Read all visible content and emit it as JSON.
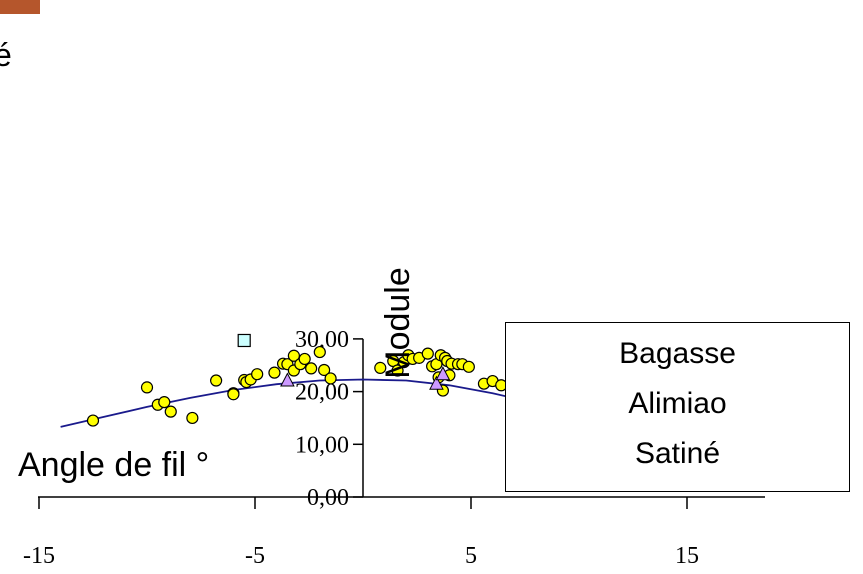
{
  "chart_data": {
    "type": "scatter",
    "xlabel": "Angle de fil °",
    "ylabel": "Module",
    "partial_text": "é",
    "xlim": [
      -15,
      20
    ],
    "ylim": [
      0,
      30
    ],
    "x_ticks": [
      -15,
      -5,
      5,
      15
    ],
    "x_tick_labels": [
      "-15",
      "-5",
      "5",
      "15"
    ],
    "y_ticks": [
      0,
      10,
      20,
      30
    ],
    "y_tick_labels": [
      "0,00",
      "10,00",
      "20,00",
      "30,00"
    ],
    "legend": [
      "Bagasse",
      "Alimiao",
      "Satiné"
    ],
    "series": [
      {
        "marker": "circle",
        "color": "#ffff00",
        "points": [
          [
            -12.5,
            14.5
          ],
          [
            -10,
            20.8
          ],
          [
            -9.5,
            17.5
          ],
          [
            -9.2,
            18
          ],
          [
            -8.9,
            16.2
          ],
          [
            -7.9,
            15
          ],
          [
            -6.8,
            22.1
          ],
          [
            -6,
            19.7
          ],
          [
            -6,
            19.5
          ],
          [
            -5.5,
            22.2
          ],
          [
            -5.4,
            21.8
          ],
          [
            -5.2,
            22.3
          ],
          [
            -4.9,
            23.3
          ],
          [
            -4.1,
            23.6
          ],
          [
            -3.7,
            25.3
          ],
          [
            -3.5,
            25.2
          ],
          [
            -3.2,
            26.8
          ],
          [
            -3.2,
            24
          ],
          [
            -2.9,
            25.2
          ],
          [
            -2.7,
            26.2
          ],
          [
            -2.4,
            24.4
          ],
          [
            -2,
            27.5
          ],
          [
            -1.8,
            24.1
          ],
          [
            -1.5,
            22.5
          ],
          [
            0.8,
            24.5
          ],
          [
            1.4,
            25.8
          ],
          [
            1.6,
            24
          ],
          [
            1.9,
            25.6
          ],
          [
            2.1,
            26.9
          ],
          [
            2.3,
            26.2
          ],
          [
            2.6,
            26.4
          ],
          [
            3.0,
            27.2
          ],
          [
            3.2,
            24.8
          ],
          [
            3.4,
            25.2
          ],
          [
            3.5,
            22.7
          ],
          [
            3.6,
            26.9
          ],
          [
            3.7,
            20.2
          ],
          [
            3.8,
            26.4
          ],
          [
            3.9,
            25.8
          ],
          [
            4.0,
            23.1
          ],
          [
            4.1,
            25.3
          ],
          [
            4.4,
            25.2
          ],
          [
            4.6,
            25.2
          ],
          [
            4.9,
            24.7
          ],
          [
            5.6,
            21.5
          ],
          [
            6.0,
            22
          ],
          [
            6.4,
            21.2
          ],
          [
            7.7,
            18.7
          ]
        ]
      },
      {
        "marker": "triangle",
        "color": "#cc99ff",
        "points": [
          [
            -3.5,
            22.1
          ],
          [
            3.4,
            21.5
          ],
          [
            3.7,
            23.3
          ],
          [
            8.2,
            20.7
          ],
          [
            8.2,
            15
          ],
          [
            15,
            13.5
          ]
        ]
      },
      {
        "marker": "square",
        "color": "#ccffff",
        "points": [
          [
            -5.5,
            29.7
          ],
          [
            6.9,
            29.6
          ],
          [
            8,
            16
          ],
          [
            10,
            20.9
          ],
          [
            10,
            17.3
          ],
          [
            12.2,
            17.5
          ],
          [
            13.2,
            27
          ],
          [
            13.5,
            16.9
          ],
          [
            17,
            13.9
          ]
        ]
      }
    ],
    "fit_line": {
      "color": "#1a1a8c",
      "points": [
        [
          -14,
          13.3
        ],
        [
          -12,
          15.2
        ],
        [
          -10,
          17.1
        ],
        [
          -8,
          18.8
        ],
        [
          -6,
          20.3
        ],
        [
          -4,
          21.4
        ],
        [
          -2,
          22.1
        ],
        [
          0,
          22.3
        ],
        [
          2,
          22.1
        ],
        [
          4,
          21.2
        ],
        [
          6,
          19.7
        ],
        [
          8,
          17.8
        ],
        [
          10,
          16.1
        ],
        [
          12,
          14.4
        ],
        [
          14,
          12.9
        ],
        [
          16,
          11.8
        ],
        [
          17.6,
          11
        ]
      ]
    }
  }
}
